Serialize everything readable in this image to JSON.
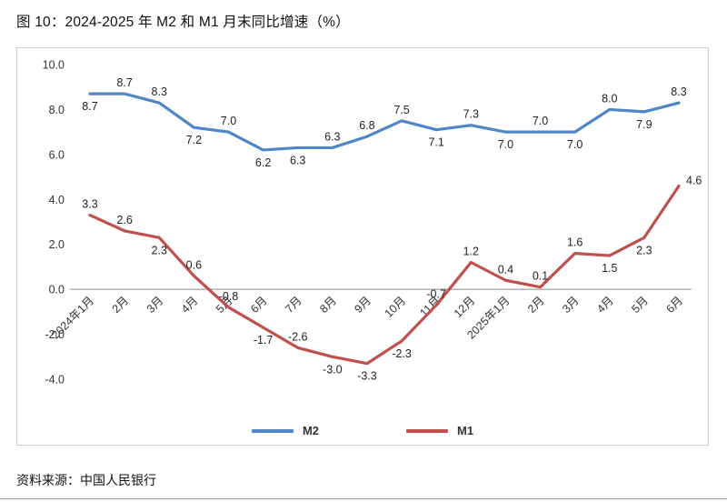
{
  "page": {
    "source": "资料来源：中国人民银行"
  },
  "chart_data": {
    "type": "line",
    "title": "图 10：2024-2025 年 M2 和 M1 月末同比增速（%）",
    "categories": [
      "2024年1月",
      "2月",
      "3月",
      "4月",
      "5月",
      "6月",
      "7月",
      "8月",
      "9月",
      "10月",
      "11月",
      "12月",
      "2025年1月",
      "2月",
      "3月",
      "4月",
      "5月",
      "6月"
    ],
    "series": [
      {
        "name": "M2",
        "color": "#4e86c6",
        "values": [
          8.7,
          8.7,
          8.3,
          7.2,
          7.0,
          6.2,
          6.3,
          6.3,
          6.8,
          7.5,
          7.1,
          7.3,
          7.0,
          7.0,
          7.0,
          8.0,
          7.9,
          8.3
        ],
        "label_side": [
          "below",
          "above",
          "above",
          "below",
          "above",
          "below",
          "below",
          "above",
          "above",
          "above",
          "below",
          "above",
          "below",
          "above",
          "below",
          "above",
          "below",
          "above"
        ]
      },
      {
        "name": "M1",
        "color": "#c0504d",
        "values": [
          3.3,
          2.6,
          2.3,
          0.6,
          -0.8,
          -1.7,
          -2.6,
          -3.0,
          -3.3,
          -2.3,
          -0.7,
          1.2,
          0.4,
          0.1,
          1.6,
          1.5,
          2.3,
          4.6
        ],
        "label_side": [
          "above",
          "above",
          "below",
          "above",
          "above",
          "below",
          "above",
          "below",
          "below",
          "below",
          "above",
          "above",
          "above",
          "above",
          "above",
          "below",
          "below",
          "right"
        ]
      }
    ],
    "ylim": [
      -4,
      10
    ],
    "yticks": [
      10,
      8,
      6,
      4,
      2,
      0,
      -2,
      -4
    ],
    "grid": false,
    "legend_position": "bottom",
    "ylabel": "",
    "xlabel": ""
  }
}
